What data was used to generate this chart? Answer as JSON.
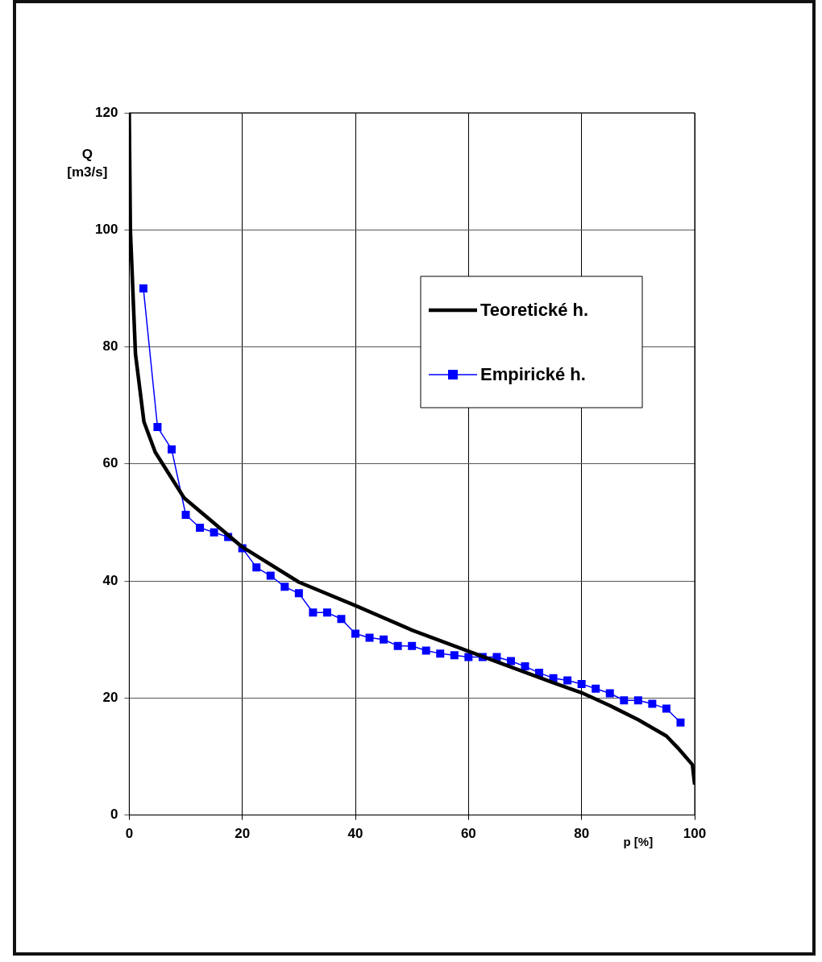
{
  "chart_data": {
    "type": "line",
    "xlabel": "p [%]",
    "ylabel": "Q [m3/s]",
    "xlim": [
      0,
      100
    ],
    "xticks": [
      0,
      20,
      40,
      60,
      80,
      100
    ],
    "ylim": [
      0,
      120
    ],
    "yticks": [
      0,
      20,
      40,
      60,
      80,
      100,
      120
    ],
    "grid": true,
    "legend": "right",
    "series": [
      {
        "name": "Teoretické h.",
        "color": "#000000",
        "marker": "none",
        "x": [
          0,
          0.2,
          1.1,
          2.6,
          4.6,
          9.7,
          20,
          30,
          40,
          50,
          60.5,
          75,
          80,
          85,
          90,
          95,
          97,
          99.6,
          100
        ],
        "values": [
          120,
          100,
          78.8,
          67.2,
          62,
          54.2,
          45.8,
          39.8,
          35.8,
          31.6,
          27.8,
          22.6,
          20.9,
          18.7,
          16.3,
          13.5,
          11.5,
          8.6,
          5.2
        ]
      },
      {
        "name": "Empirické h.",
        "color": "#0000ff",
        "marker": "square",
        "x": [
          2.5,
          5,
          7.5,
          10,
          12.5,
          15,
          17.5,
          20,
          22.5,
          25,
          27.5,
          30,
          32.5,
          35,
          37.5,
          40,
          42.5,
          45,
          47.5,
          50,
          52.5,
          55,
          57.5,
          60,
          62.5,
          65,
          67.5,
          70,
          72.5,
          75,
          77.5,
          80,
          82.5,
          85,
          87.5,
          90,
          92.5,
          95,
          97.5
        ],
        "values": [
          90,
          66.3,
          62.5,
          51.3,
          49.1,
          48.3,
          47.5,
          45.6,
          42.3,
          40.9,
          39,
          37.9,
          34.6,
          34.6,
          33.5,
          31,
          30.3,
          30,
          28.9,
          28.9,
          28.1,
          27.6,
          27.3,
          27,
          27,
          27,
          26.3,
          25.4,
          24.3,
          23.4,
          23,
          22.4,
          21.6,
          20.8,
          19.6,
          19.6,
          19,
          18.2,
          15.8
        ]
      }
    ]
  }
}
